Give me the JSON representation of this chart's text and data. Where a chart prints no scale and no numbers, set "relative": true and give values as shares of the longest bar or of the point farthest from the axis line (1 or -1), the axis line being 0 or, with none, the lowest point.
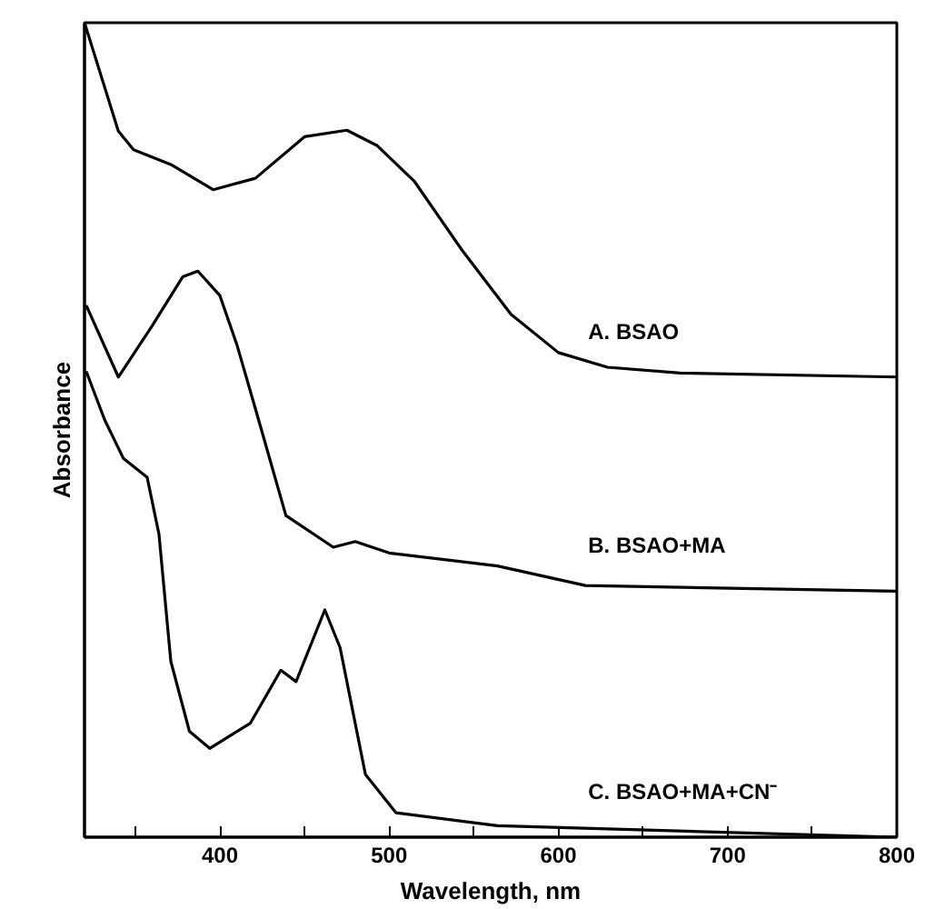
{
  "chart_data": {
    "type": "line",
    "relative": true,
    "xlabel": "Wavelength, nm",
    "ylabel": "Absorbance",
    "xlim": [
      320,
      800
    ],
    "xticks": [
      {
        "value": 350,
        "label": null
      },
      400,
      {
        "value": 450,
        "label": null
      },
      500,
      {
        "value": 550,
        "label": null
      },
      600,
      {
        "value": 650,
        "label": null
      },
      700,
      {
        "value": 750,
        "label": null
      },
      800
    ],
    "grid": false,
    "line_style": "solid",
    "marker": "none",
    "series": [
      {
        "name": "A. BSAO",
        "color": "#000000",
        "x": [
          320,
          340,
          349,
          371,
          396,
          421,
          450,
          475,
          493,
          515,
          543,
          572,
          600,
          629,
          672,
          800
        ],
        "values": [
          1,
          0.867,
          0.844,
          0.826,
          0.795,
          0.809,
          0.86,
          0.868,
          0.849,
          0.805,
          0.721,
          0.642,
          0.595,
          0.577,
          0.57,
          0.565
        ]
      },
      {
        "name": "B. BSAO+MA",
        "color": "#000000",
        "x": [
          321,
          340,
          360,
          378,
          387,
          400,
          410,
          421,
          439,
          467,
          480,
          500,
          564,
          616,
          800
        ],
        "values": [
          0.653,
          0.565,
          0.628,
          0.688,
          0.695,
          0.665,
          0.605,
          0.526,
          0.395,
          0.356,
          0.363,
          0.349,
          0.333,
          0.309,
          0.302
        ]
      },
      {
        "name": "C. BSAO+MA+CN⁻",
        "color": "#000000",
        "x": [
          321,
          332,
          343,
          357,
          364,
          371,
          382,
          394,
          418,
          436,
          445,
          462,
          471,
          486,
          504,
          564,
          800
        ],
        "values": [
          0.572,
          0.512,
          0.465,
          0.442,
          0.372,
          0.216,
          0.13,
          0.109,
          0.14,
          0.205,
          0.191,
          0.279,
          0.233,
          0.077,
          0.03,
          0.014,
          0
        ]
      }
    ]
  }
}
